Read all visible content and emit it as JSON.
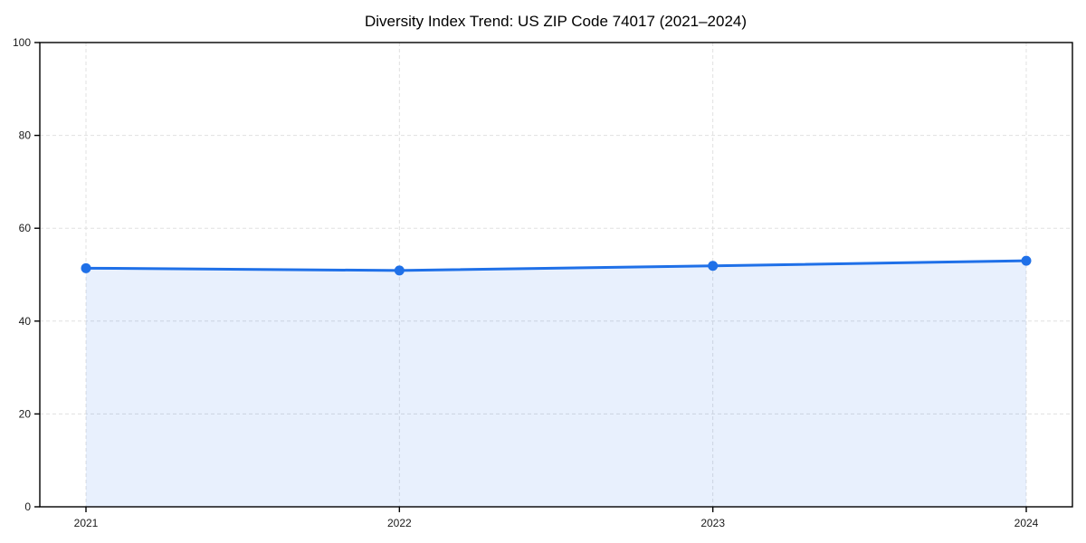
{
  "chart_data": {
    "type": "line",
    "title": "Diversity Index Trend: US ZIP Code 74017 (2021–2024)",
    "x": [
      "2021",
      "2022",
      "2023",
      "2024"
    ],
    "series": [
      {
        "name": "Diversity Index",
        "values": [
          51.4,
          50.9,
          51.9,
          53.0
        ]
      }
    ],
    "xlabel": "",
    "ylabel": "",
    "ylim": [
      0,
      100
    ],
    "yticks": [
      0,
      20,
      40,
      60,
      80,
      100
    ],
    "grid": "dashed-both-axes",
    "legend": "none",
    "area_fill_to_zero": true,
    "marker": "circle",
    "colors": {
      "line": "#1f70e8",
      "marker": "#1f70e8",
      "area": "#1f70e8",
      "area_opacity": 0.1,
      "grid": "#e0e0e0",
      "axis": "#000000",
      "tick_text": "#1a1a1a",
      "title_text": "#000000",
      "background": "#ffffff"
    }
  }
}
